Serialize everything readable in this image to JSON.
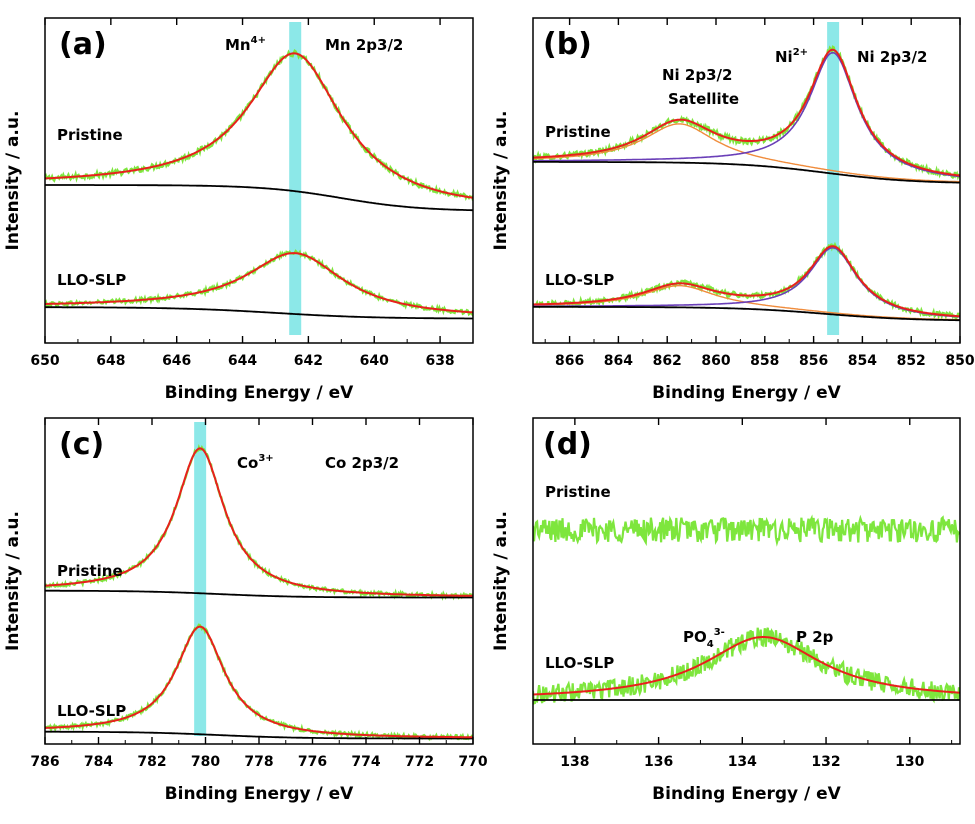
{
  "figure": {
    "description_type": "XPS spectra, four panels"
  },
  "chart_data": [
    {
      "panel": "(a)",
      "type": "line",
      "xlabel": "Binding Energy / eV",
      "ylabel": "Intensity / a.u.",
      "xlim": [
        650,
        637
      ],
      "xticks": [
        650,
        648,
        646,
        644,
        642,
        640,
        638
      ],
      "xtick_labels": [
        "650",
        "648",
        "646",
        "644",
        "642",
        "640",
        "638"
      ],
      "highlight_energy": 642.4,
      "annotations": [
        {
          "text": "Mn",
          "sup": "4+",
          "role": "oxidation-state"
        },
        {
          "text": "Mn 2p3/2",
          "role": "peak-label"
        }
      ],
      "spectra": [
        {
          "name": "Pristine",
          "offset": 1.0,
          "peak": {
            "center": 642.4,
            "fwhm": 3.4,
            "height": 0.95
          },
          "background": {
            "start": 0.0,
            "end": -0.18,
            "step_center": 641.0,
            "step_width": 1.2
          },
          "noise": 0.02
        },
        {
          "name": "LLO-SLP",
          "offset": 0.0,
          "peak": {
            "center": 642.4,
            "fwhm": 3.6,
            "height": 0.42
          },
          "background": {
            "start": 0.02,
            "end": -0.06,
            "step_center": 643.0,
            "step_width": 1.5
          },
          "noise": 0.015
        }
      ]
    },
    {
      "panel": "(b)",
      "type": "line",
      "xlabel": "Binding Energy / eV",
      "ylabel": "Intensity / a.u.",
      "xlim": [
        867.5,
        850
      ],
      "xticks": [
        866,
        864,
        862,
        860,
        858,
        856,
        854,
        852,
        850
      ],
      "xtick_labels": [
        "866",
        "864",
        "862",
        "860",
        "858",
        "856",
        "854",
        "852",
        "850"
      ],
      "highlight_energy": 855.2,
      "annotations": [
        {
          "text": "Ni 2p3/2",
          "role": "satellite-label-line1"
        },
        {
          "text": "Satellite",
          "role": "satellite-label-line2"
        },
        {
          "text": "Ni",
          "sup": "2+",
          "role": "oxidation-state"
        },
        {
          "text": "Ni 2p3/2",
          "role": "peak-label"
        }
      ],
      "spectra": [
        {
          "name": "Pristine",
          "offset": 1.0,
          "peak": {
            "center": 855.2,
            "fwhm": 2.4,
            "height": 0.78
          },
          "satellite": {
            "center": 861.5,
            "fwhm": 3.6,
            "height": 0.25
          },
          "background": {
            "start": 0.02,
            "end": -0.12,
            "step_center": 855.5,
            "step_width": 1.8
          },
          "noise": 0.02
        },
        {
          "name": "LLO-SLP",
          "offset": 0.0,
          "peak": {
            "center": 855.2,
            "fwhm": 2.4,
            "height": 0.43
          },
          "satellite": {
            "center": 861.5,
            "fwhm": 3.6,
            "height": 0.14
          },
          "background": {
            "start": 0.02,
            "end": -0.07,
            "step_center": 855.5,
            "step_width": 1.8
          },
          "noise": 0.018
        }
      ]
    },
    {
      "panel": "(c)",
      "type": "line",
      "xlabel": "Binding Energy / eV",
      "ylabel": "Intensity / a.u.",
      "xlim": [
        786,
        770
      ],
      "xticks": [
        786,
        784,
        782,
        780,
        778,
        776,
        774,
        772,
        770
      ],
      "xtick_labels": [
        "786",
        "784",
        "782",
        "780",
        "778",
        "776",
        "774",
        "772",
        "770"
      ],
      "highlight_energy": 780.2,
      "annotations": [
        {
          "text": "Co",
          "sup": "3+",
          "role": "oxidation-state"
        },
        {
          "text": "Co 2p3/2",
          "role": "peak-label"
        }
      ],
      "spectra": [
        {
          "name": "Pristine",
          "offset": 1.0,
          "peak": {
            "center": 780.2,
            "fwhm": 2.2,
            "height": 1.05
          },
          "background": {
            "start": 0.01,
            "end": -0.04,
            "step_center": 779.5,
            "step_width": 1.5
          },
          "noise": 0.015
        },
        {
          "name": "LLO-SLP",
          "offset": 0.0,
          "peak": {
            "center": 780.2,
            "fwhm": 2.2,
            "height": 0.78
          },
          "background": {
            "start": 0.01,
            "end": -0.04,
            "step_center": 779.5,
            "step_width": 1.5
          },
          "noise": 0.015
        }
      ]
    },
    {
      "panel": "(d)",
      "type": "line",
      "xlabel": "Binding Energy / eV",
      "ylabel": "Intensity / a.u.",
      "xlim": [
        139,
        128.8
      ],
      "xticks": [
        138,
        136,
        134,
        132,
        130
      ],
      "xtick_labels": [
        "138",
        "136",
        "134",
        "132",
        "130"
      ],
      "annotations": [
        {
          "text": "PO",
          "sub": "4",
          "sup": "3-",
          "role": "species"
        },
        {
          "text": "P 2p",
          "role": "peak-label"
        }
      ],
      "spectra": [
        {
          "name": "Pristine",
          "offset": 1.0,
          "noise": 0.09
        },
        {
          "name": "LLO-SLP",
          "offset": 0.0,
          "peak": {
            "center": 133.5,
            "fwhm": 3.4,
            "height": 0.45
          },
          "background": {
            "start": 0.0,
            "end": 0.0,
            "step_center": 134,
            "step_width": 1
          },
          "noise": 0.07
        }
      ]
    }
  ],
  "colors": {
    "data": "#7ee63d",
    "fit": "#e8201c",
    "background": "#000000",
    "component": "#6a3fb8",
    "component_bg": "#f08c3c",
    "highlight": "#7fe6e6"
  }
}
